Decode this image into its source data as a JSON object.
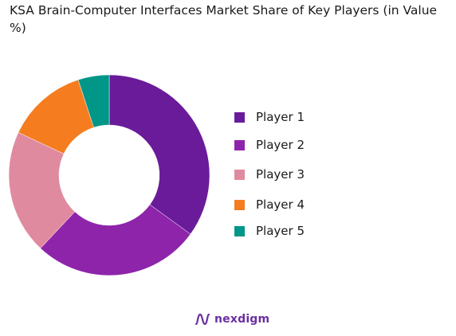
{
  "chart_data": {
    "type": "pie",
    "title": "KSA Brain-Computer Interfaces Market Share of Key Players (in Value %)",
    "categories": [
      "Player 1",
      "Player 2",
      "Player 3",
      "Player 4",
      "Player 5"
    ],
    "values": [
      35,
      27,
      20,
      13,
      5
    ],
    "colors": [
      "#6a1b9a",
      "#8e24aa",
      "#e08aa0",
      "#f57c1f",
      "#009688"
    ],
    "legend_position": "right",
    "hole": 0.5
  },
  "brand": {
    "name": "nexdigm",
    "logo_icon": "nexdigm-wave-icon",
    "color": "#6b2fa1"
  }
}
